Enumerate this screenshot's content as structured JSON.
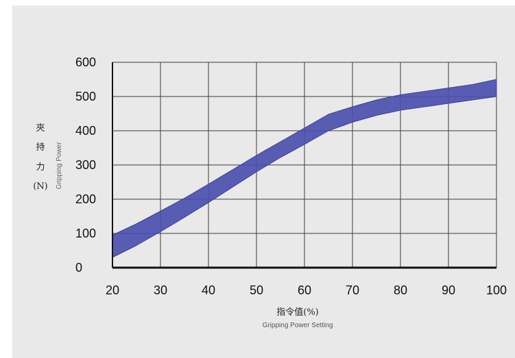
{
  "chart_data": {
    "type": "area",
    "x": [
      20,
      25,
      30,
      35,
      40,
      45,
      50,
      55,
      60,
      65,
      70,
      75,
      80,
      85,
      90,
      95,
      100
    ],
    "series": [
      {
        "values": [
          95,
          128,
          165,
          203,
          244,
          286,
          328,
          368,
          408,
          448,
          470,
          490,
          505,
          515,
          525,
          535,
          550
        ]
      },
      {
        "values": [
          30,
          65,
          105,
          147,
          190,
          235,
          280,
          322,
          360,
          400,
          425,
          445,
          460,
          470,
          480,
          490,
          500
        ]
      }
    ],
    "xticks": [
      "20",
      "30",
      "40",
      "50",
      "60",
      "70",
      "80",
      "90",
      "100"
    ],
    "yticks": [
      "0",
      "100",
      "200",
      "300",
      "400",
      "500",
      "600"
    ],
    "xlim": [
      20,
      100
    ],
    "ylim": [
      0,
      600
    ],
    "ylabel_cn": [
      "夾",
      "持",
      "力",
      "(N)"
    ],
    "ylabel_en": "Gripping Power",
    "xlabel_cn": "指令值(%)",
    "xlabel_en": "Gripping Power Setting",
    "grid": true,
    "band_color": "#4b4fae"
  }
}
